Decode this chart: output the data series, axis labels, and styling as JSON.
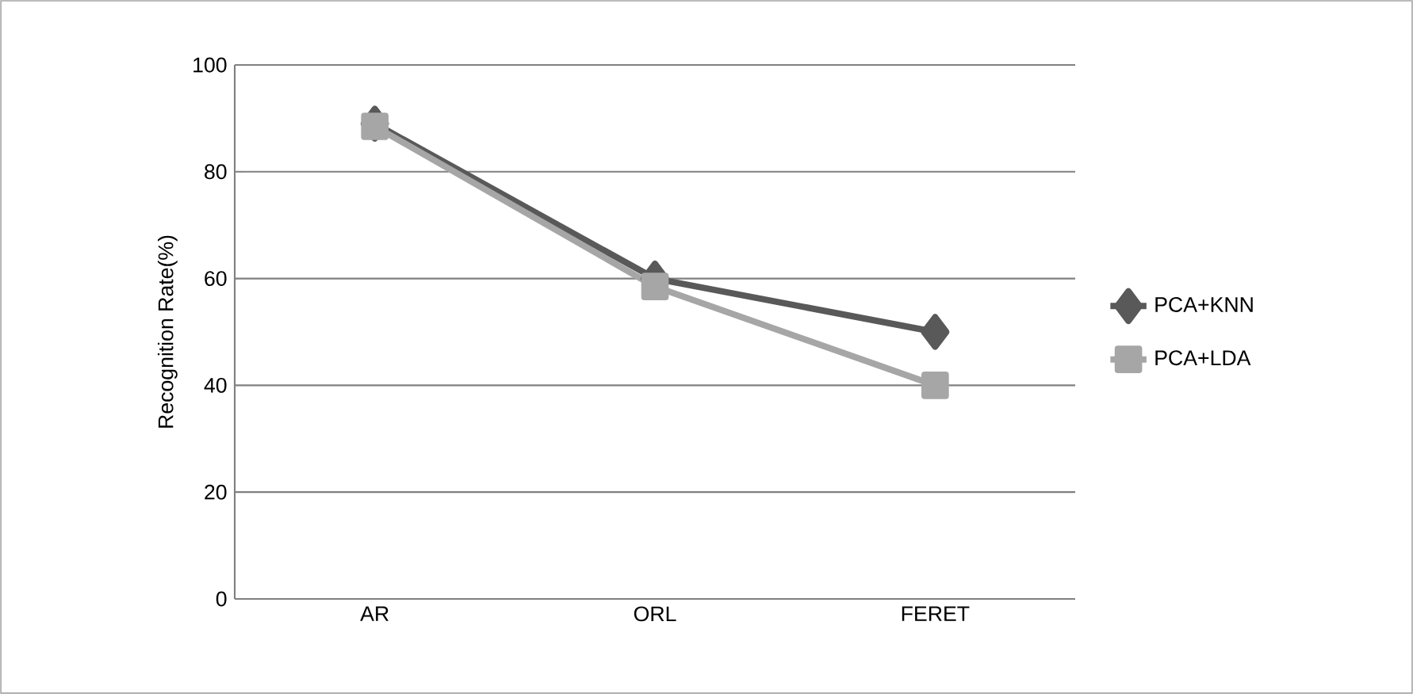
{
  "chart_data": {
    "type": "line",
    "ylabel": "Recognition Rate(%)",
    "categories": [
      "AR",
      "ORL",
      "FERET"
    ],
    "series": [
      {
        "name": "PCA+KNN",
        "color": "#595959",
        "marker": "diamond",
        "values": [
          89,
          60,
          50
        ]
      },
      {
        "name": "PCA+LDA",
        "color": "#a6a6a6",
        "marker": "square",
        "values": [
          88.5,
          58.5,
          40
        ]
      }
    ],
    "ylim": [
      0,
      100
    ],
    "yticks": [
      0,
      20,
      40,
      60,
      80,
      100
    ],
    "grid": "y",
    "legend": "right",
    "line_style": "solid"
  }
}
